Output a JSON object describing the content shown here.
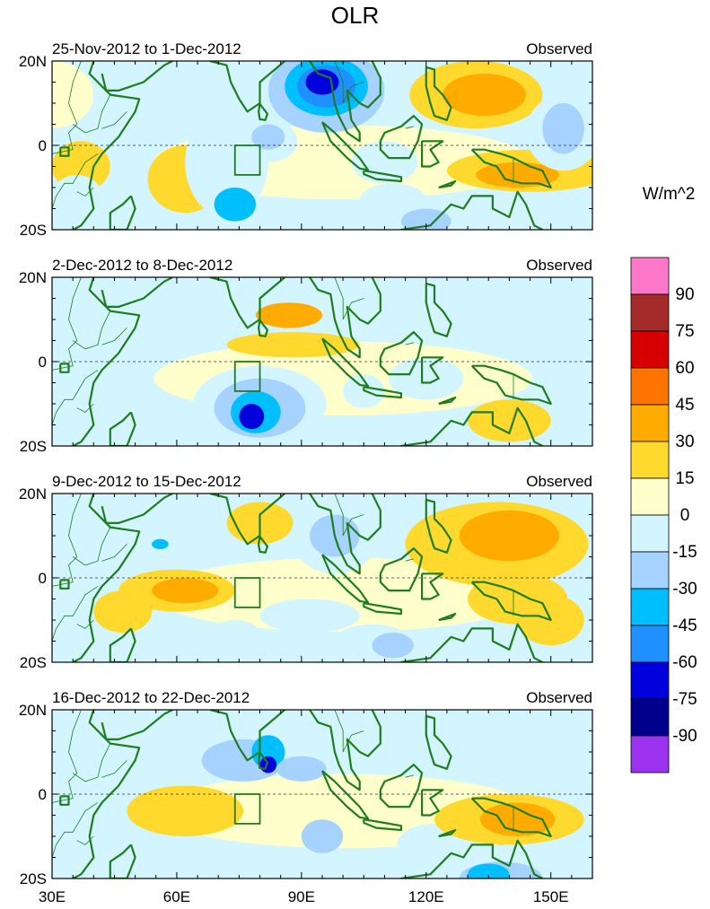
{
  "title": "OLR",
  "units": "W/m^2",
  "lat_labels": [
    "20N",
    "0",
    "20S"
  ],
  "lon_labels": [
    "30E",
    "60E",
    "90E",
    "120E",
    "150E"
  ],
  "panels": [
    {
      "period": "25-Nov-2012 to 1-Dec-2012",
      "tag": "Observed"
    },
    {
      "period": "2-Dec-2012 to 8-Dec-2012",
      "tag": "Observed"
    },
    {
      "period": "9-Dec-2012 to 15-Dec-2012",
      "tag": "Observed"
    },
    {
      "period": "16-Dec-2012 to 22-Dec-2012",
      "tag": "Observed"
    }
  ],
  "colorbar": {
    "labels": [
      "90",
      "75",
      "60",
      "45",
      "30",
      "15",
      "0",
      "-15",
      "-30",
      "-45",
      "-60",
      "-75",
      "-90"
    ],
    "colors": [
      "#ff77c8",
      "#a52a2a",
      "#d70000",
      "#ff7300",
      "#ffab00",
      "#ffd92d",
      "#ffffcc",
      "#d2f5ff",
      "#a5d2ff",
      "#00bfff",
      "#1e90ff",
      "#0000dc",
      "#00008c",
      "#9a32f0"
    ]
  },
  "reference_box": {
    "lon": [
      74,
      80
    ],
    "lat": [
      -7,
      0
    ]
  }
}
